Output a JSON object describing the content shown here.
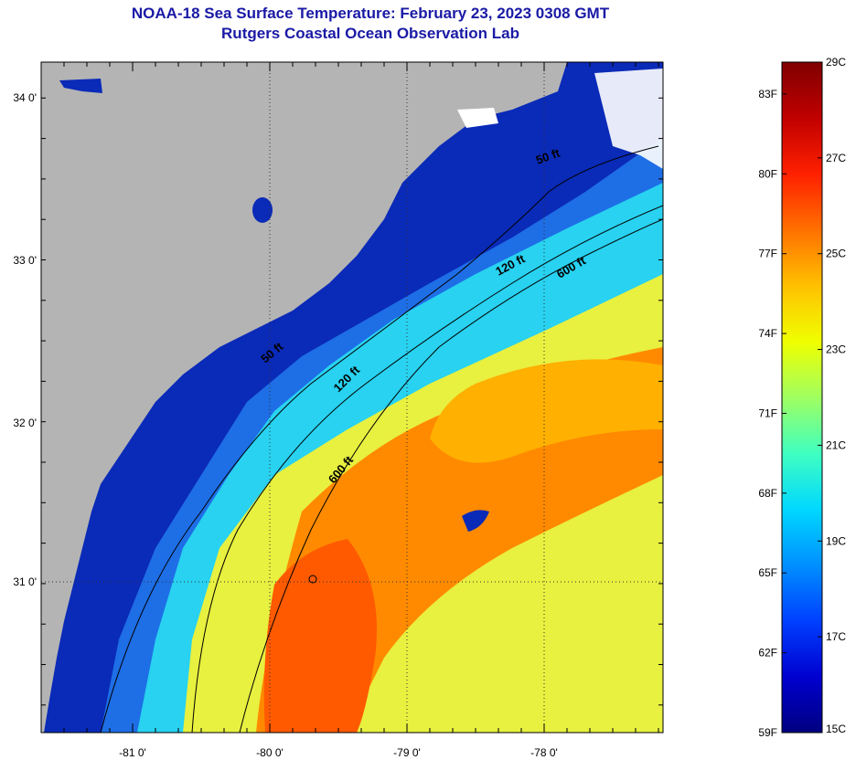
{
  "title": {
    "line1": "NOAA-18 Sea Surface Temperature:  February 23, 2023 0308 GMT",
    "line2": "Rutgers Coastal Ocean Observation Lab"
  },
  "colors": {
    "land": "#b4b4b4",
    "coastal_water": "#0a2ab8",
    "shelf_water": "#1e6ee6",
    "slope_water": "#28d2f0",
    "gulf_stream_warm": "#ff6a00",
    "gulf_stream_mid": "#ffb000",
    "offshore": "#e8f040",
    "cloud": "#ffffff",
    "title_color": "#1a1aa6"
  },
  "map": {
    "lon_ticks": [
      "-81 0'",
      "-80 0'",
      "-79 0'",
      "-78 0'"
    ],
    "lat_ticks": [
      "34 0'",
      "33 0'",
      "32 0'",
      "31 0'"
    ],
    "contour_labels": [
      {
        "text": "50 ft"
      },
      {
        "text": "120 ft"
      },
      {
        "text": "600 ft"
      },
      {
        "text": "50 ft"
      },
      {
        "text": "120 ft"
      },
      {
        "text": "600 ft"
      }
    ]
  },
  "colorbar": {
    "celsius_labels": [
      "29C",
      "27C",
      "25C",
      "23C",
      "21C",
      "19C",
      "17C",
      "15C"
    ],
    "fahrenheit_labels": [
      "83F",
      "80F",
      "77F",
      "74F",
      "71F",
      "68F",
      "65F",
      "62F",
      "59F"
    ],
    "min_c": 15,
    "max_c": 29,
    "gradient": [
      "#000080",
      "#0000d0",
      "#0040ff",
      "#0090ff",
      "#00d8ff",
      "#40ffc0",
      "#a0ff60",
      "#f0ff00",
      "#ffc000",
      "#ff7000",
      "#ff2000",
      "#c00000",
      "#800000"
    ]
  }
}
